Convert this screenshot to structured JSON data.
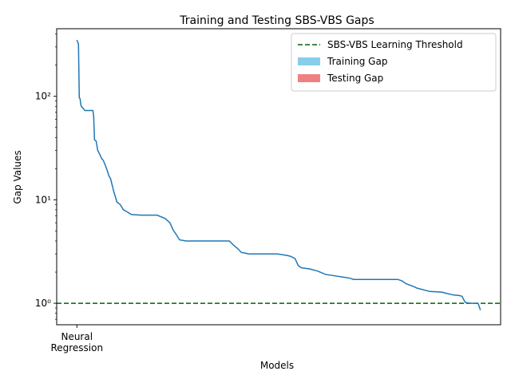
{
  "chart_data": {
    "type": "line",
    "title": "Training and Testing SBS-VBS Gaps",
    "xlabel": "Models",
    "ylabel": "Gap Values",
    "yscale": "log",
    "ylim": [
      0.62,
      450
    ],
    "x_tick_labels": [
      {
        "x": 0,
        "label": "Neural\nRegression"
      }
    ],
    "y_tick_labels": [
      {
        "value": 1,
        "label": "10⁰"
      },
      {
        "value": 10,
        "label": "10¹"
      },
      {
        "value": 100,
        "label": "10²"
      }
    ],
    "grid": false,
    "legend_placement": "top-right",
    "threshold": {
      "name": "SBS-VBS Learning Threshold",
      "value": 1.0,
      "color": "#006400",
      "style": "dashed"
    },
    "legend": [
      {
        "label": "SBS-VBS Learning Threshold",
        "kind": "dashed-line",
        "color": "#006400"
      },
      {
        "label": "Training Gap",
        "kind": "patch",
        "color": "#87ceeb"
      },
      {
        "label": "Testing Gap",
        "kind": "patch",
        "color": "#f08080"
      }
    ],
    "series": [
      {
        "color": "#1f77b4",
        "x": [
          0,
          2,
          3,
          4,
          5,
          6,
          7,
          8,
          10,
          12,
          14,
          16,
          18,
          20,
          21,
          22,
          24,
          26,
          28,
          31,
          33,
          36,
          38,
          40,
          42,
          46,
          50,
          54,
          58,
          62,
          68,
          80,
          100,
          110,
          116,
          120,
          124,
          128,
          136,
          150,
          170,
          190,
          196,
          200,
          205,
          210,
          214,
          220,
          230,
          250,
          262,
          266,
          270,
          272,
          276,
          280,
          290,
          300,
          310,
          320,
          330,
          340,
          345,
          350,
          356,
          370,
          390,
          400,
          405,
          410,
          420,
          424,
          440,
          455,
          460,
          470,
          476,
          480,
          484,
          490,
          500,
          503
        ],
        "y": [
          350,
          320,
          97,
          95,
          82,
          79,
          78,
          76,
          73,
          73,
          73,
          73,
          73,
          73,
          63,
          38,
          37,
          30,
          28,
          25,
          24,
          21,
          19,
          17,
          16,
          12,
          9.5,
          9,
          8,
          7.7,
          7.2,
          7.1,
          7.1,
          6.6,
          6.0,
          5.1,
          4.6,
          4.1,
          4.0,
          4.0,
          4.0,
          4.0,
          3.6,
          3.4,
          3.1,
          3.05,
          3.0,
          3.0,
          3.0,
          3.0,
          2.9,
          2.85,
          2.75,
          2.7,
          2.3,
          2.2,
          2.15,
          2.05,
          1.9,
          1.85,
          1.8,
          1.75,
          1.7,
          1.7,
          1.7,
          1.7,
          1.7,
          1.7,
          1.65,
          1.55,
          1.45,
          1.4,
          1.3,
          1.28,
          1.25,
          1.2,
          1.19,
          1.17,
          1.02,
          1.0,
          1.0,
          0.86
        ]
      }
    ]
  }
}
